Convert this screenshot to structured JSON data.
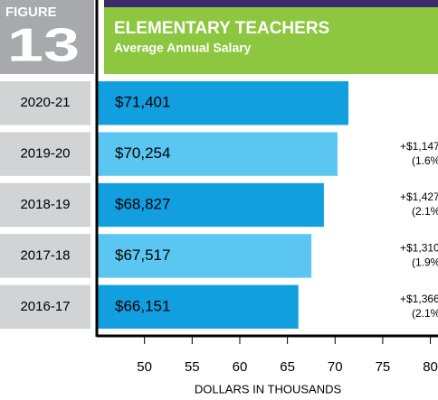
{
  "figure_label": "FIGURE",
  "figure_number": "13",
  "chart_data": {
    "type": "bar",
    "orientation": "horizontal",
    "title": "ELEMENTARY TEACHERS",
    "subtitle": "Average Annual Salary",
    "categories": [
      "2020-21",
      "2019-20",
      "2018-19",
      "2017-18",
      "2016-17"
    ],
    "values": [
      71.401,
      70.254,
      68.827,
      67.517,
      66.151
    ],
    "value_labels": [
      "$71,401",
      "$70,254",
      "$68,827",
      "$67,517",
      "$66,151"
    ],
    "colors": [
      "#129fe0",
      "#5ac6f1",
      "#129fe0",
      "#5ac6f1",
      "#129fe0"
    ],
    "changes": [
      null,
      "+$1,147",
      "+$1,427",
      "+$1,310",
      "+$1,366"
    ],
    "change_pcts": [
      null,
      "(1.6%)",
      "(2.1%)",
      "(1.9%)",
      "(2.1%)"
    ],
    "xlim": [
      45,
      80.8
    ],
    "xticks": [
      50,
      55,
      60,
      65,
      70,
      75,
      80
    ],
    "xlabel": "DOLLARS IN THOUSANDS"
  }
}
